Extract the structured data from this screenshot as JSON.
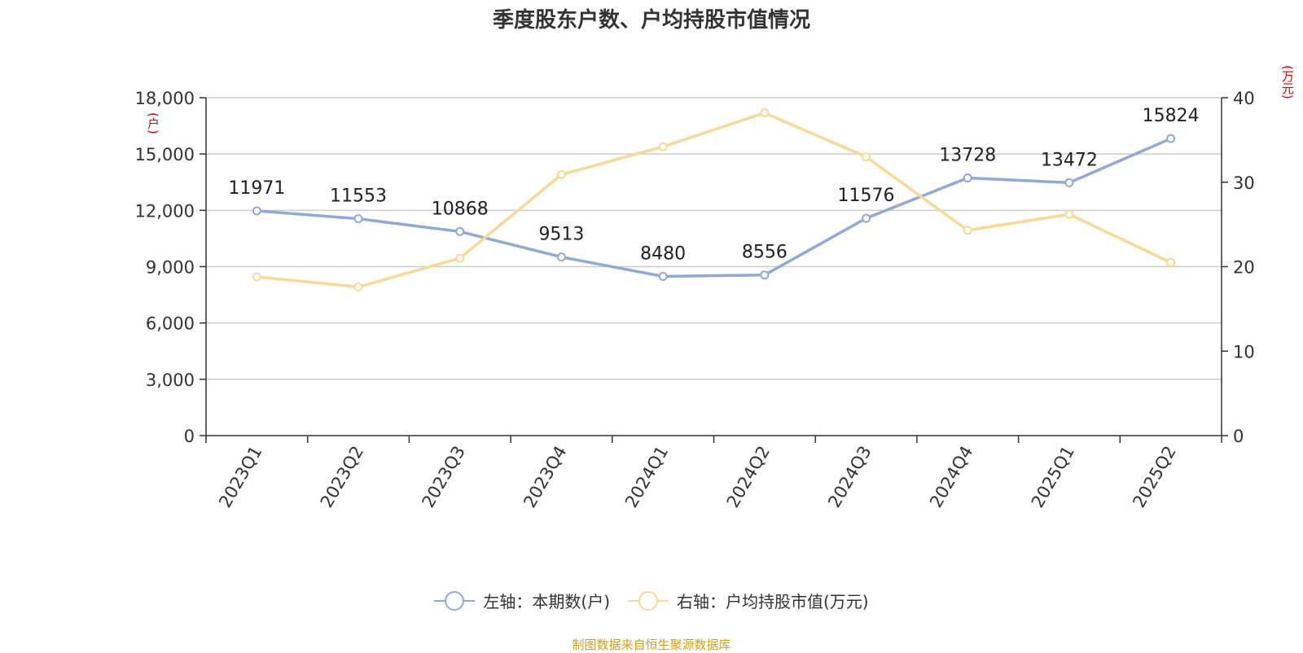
{
  "chart_data": {
    "type": "line",
    "title": "季度股东户数、户均持股市值情况",
    "categories": [
      "2023Q1",
      "2023Q2",
      "2023Q3",
      "2023Q4",
      "2024Q1",
      "2024Q2",
      "2024Q3",
      "2024Q4",
      "2025Q1",
      "2025Q2"
    ],
    "left_axis": {
      "unit_label": "(户)",
      "ylim": [
        0,
        18000
      ],
      "ticks": [
        "0",
        "3,000",
        "6,000",
        "9,000",
        "12,000",
        "15,000",
        "18,000"
      ]
    },
    "right_axis": {
      "unit_label": "(万元)",
      "ylim": [
        0,
        40
      ],
      "ticks": [
        "0",
        "10",
        "20",
        "30",
        "40"
      ]
    },
    "series": [
      {
        "name": "左轴：本期数(户)",
        "axis": "left",
        "color": "#8eaad6",
        "values": [
          11971,
          11553,
          10868,
          9513,
          8480,
          8556,
          11576,
          13728,
          13472,
          15824
        ],
        "labels": [
          "11971",
          "11553",
          "10868",
          "9513",
          "8480",
          "8556",
          "11576",
          "13728",
          "13472",
          "15824"
        ]
      },
      {
        "name": "右轴：户均持股市值(万元)",
        "axis": "right",
        "color": "#fad896",
        "values": [
          18.8,
          17.6,
          21.0,
          30.9,
          34.2,
          38.2,
          33.0,
          24.3,
          26.2,
          20.5
        ]
      }
    ],
    "grid": true,
    "legend_position": "bottom-center"
  },
  "footer": {
    "source": "制图数据来自恒生聚源数据库"
  }
}
